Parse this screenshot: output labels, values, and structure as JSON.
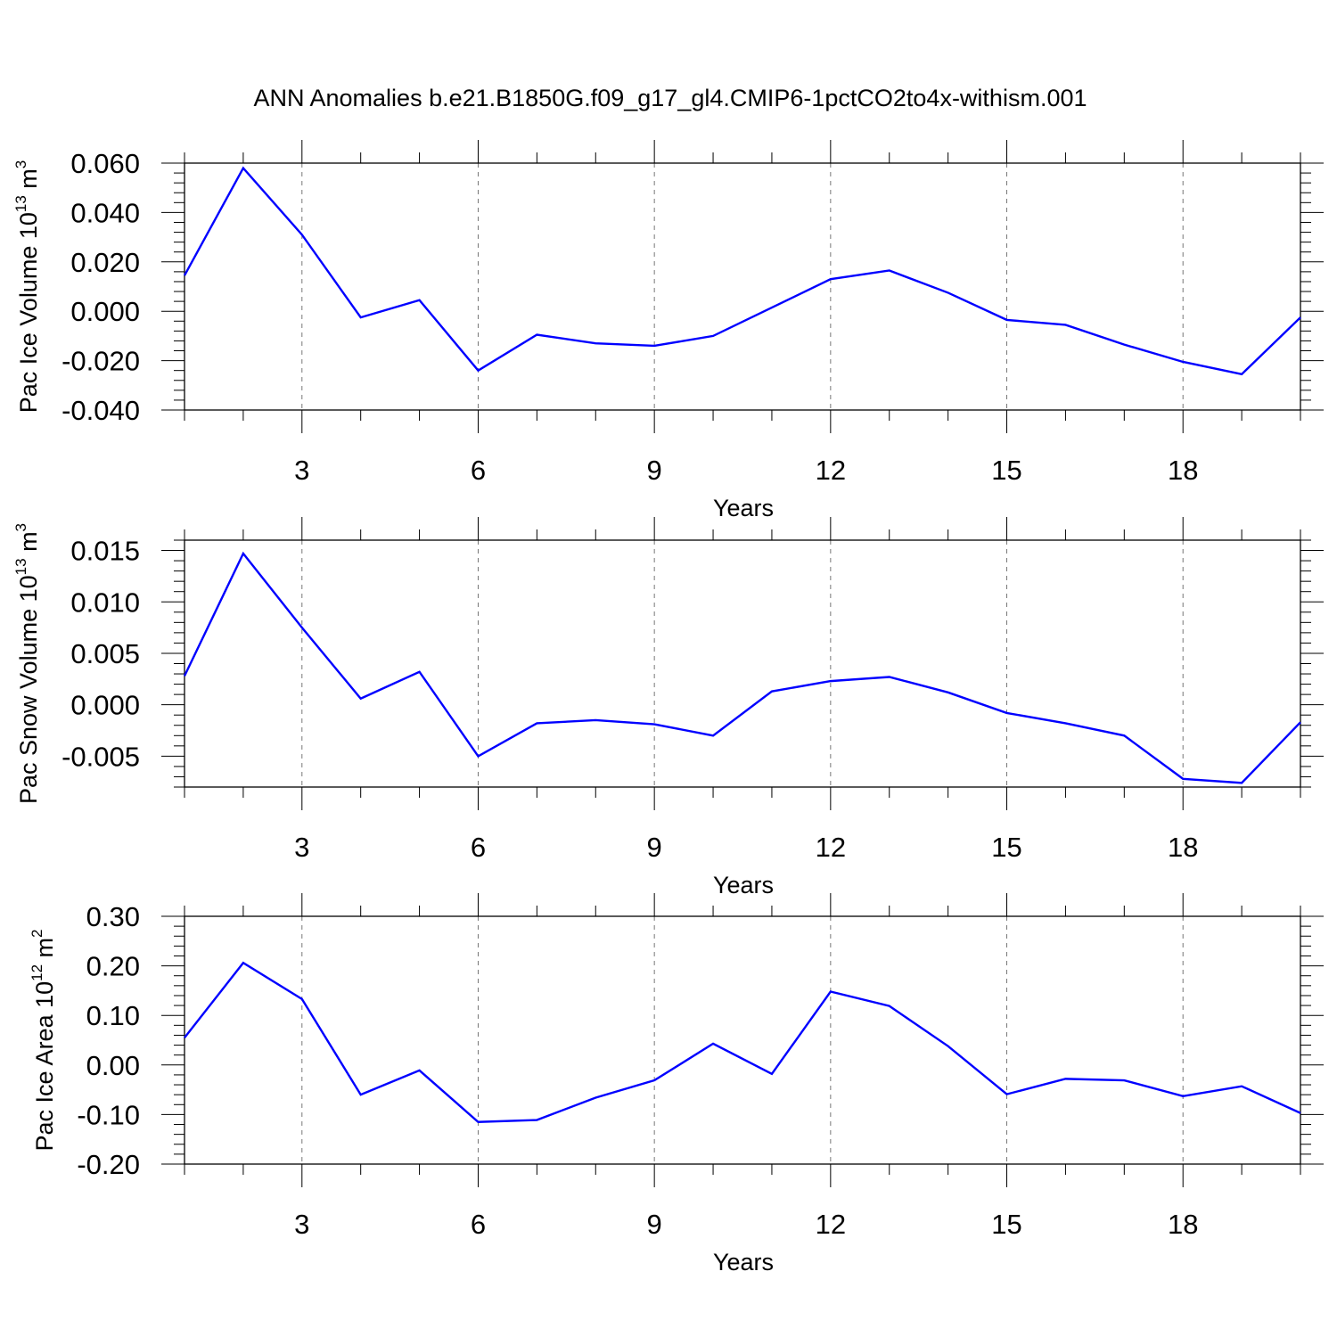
{
  "title": "ANN Anomalies b.e21.B1850G.f09_g17_gl4.CMIP6-1pctCO2to4x-withism.001",
  "colors": {
    "line": "#0000ff",
    "axis": "#000000",
    "grid": "#777777"
  },
  "chart_data": [
    {
      "type": "line",
      "ylabel": {
        "text": "Pac Ice Volume 10",
        "sup1": "13",
        "mid": " m",
        "sup2": "3"
      },
      "xlabel": "Years",
      "xlim": [
        1,
        20
      ],
      "ylim": [
        -0.04,
        0.06
      ],
      "xticks": [
        3,
        6,
        9,
        12,
        15,
        18
      ],
      "xtick_labels": [
        "3",
        "6",
        "9",
        "12",
        "15",
        "18"
      ],
      "yticks": [
        -0.04,
        -0.02,
        0.0,
        0.02,
        0.04,
        0.06
      ],
      "ytick_labels": [
        "-0.040",
        "-0.020",
        "0.000",
        "0.020",
        "0.040",
        "0.060"
      ],
      "grid": "vertical dashed",
      "x": [
        1,
        2,
        3,
        4,
        5,
        6,
        7,
        8,
        9,
        10,
        11,
        12,
        13,
        14,
        15,
        16,
        17,
        18,
        19,
        20
      ],
      "series": [
        {
          "values": [
            0.0145,
            0.058,
            0.031,
            -0.0025,
            0.0045,
            -0.024,
            -0.0095,
            -0.013,
            -0.014,
            -0.01,
            0.0015,
            0.013,
            0.0165,
            0.0075,
            -0.0035,
            -0.0055,
            -0.0135,
            -0.0205,
            -0.0255,
            -0.0025
          ]
        }
      ]
    },
    {
      "type": "line",
      "ylabel": {
        "text": "Pac Snow Volume 10",
        "sup1": "13",
        "mid": " m",
        "sup2": "3"
      },
      "xlabel": "Years",
      "xlim": [
        1,
        20
      ],
      "ylim": [
        -0.008,
        0.016
      ],
      "xticks": [
        3,
        6,
        9,
        12,
        15,
        18
      ],
      "xtick_labels": [
        "3",
        "6",
        "9",
        "12",
        "15",
        "18"
      ],
      "yticks": [
        -0.005,
        0.0,
        0.005,
        0.01,
        0.015
      ],
      "ytick_labels": [
        "-0.005",
        "0.000",
        "0.005",
        "0.010",
        "0.015"
      ],
      "grid": "vertical dashed",
      "x": [
        1,
        2,
        3,
        4,
        5,
        6,
        7,
        8,
        9,
        10,
        11,
        12,
        13,
        14,
        15,
        16,
        17,
        18,
        19,
        20
      ],
      "series": [
        {
          "values": [
            0.0028,
            0.0147,
            0.0075,
            0.0006,
            0.0032,
            -0.005,
            -0.0018,
            -0.0015,
            -0.0019,
            -0.003,
            0.0013,
            0.0023,
            0.0027,
            0.0012,
            -0.0008,
            -0.0018,
            -0.003,
            -0.0072,
            -0.0076,
            -0.0017
          ]
        }
      ]
    },
    {
      "type": "line",
      "ylabel": {
        "text": "Pac Ice Area 10",
        "sup1": "12",
        "mid": " m",
        "sup2": "2"
      },
      "xlabel": "Years",
      "xlim": [
        1,
        20
      ],
      "ylim": [
        -0.2,
        0.3
      ],
      "xticks": [
        3,
        6,
        9,
        12,
        15,
        18
      ],
      "xtick_labels": [
        "3",
        "6",
        "9",
        "12",
        "15",
        "18"
      ],
      "yticks": [
        -0.2,
        -0.1,
        0.0,
        0.1,
        0.2,
        0.3
      ],
      "ytick_labels": [
        "-0.20",
        "-0.10",
        "0.00",
        "0.10",
        "0.20",
        "0.30"
      ],
      "grid": "vertical dashed",
      "x": [
        1,
        2,
        3,
        4,
        5,
        6,
        7,
        8,
        9,
        10,
        11,
        12,
        13,
        14,
        15,
        16,
        17,
        18,
        19,
        20
      ],
      "series": [
        {
          "values": [
            0.055,
            0.206,
            0.133,
            -0.06,
            -0.011,
            -0.115,
            -0.111,
            -0.066,
            -0.031,
            0.043,
            -0.018,
            0.148,
            0.119,
            0.038,
            -0.059,
            -0.028,
            -0.031,
            -0.063,
            -0.043,
            -0.097
          ]
        }
      ]
    }
  ]
}
